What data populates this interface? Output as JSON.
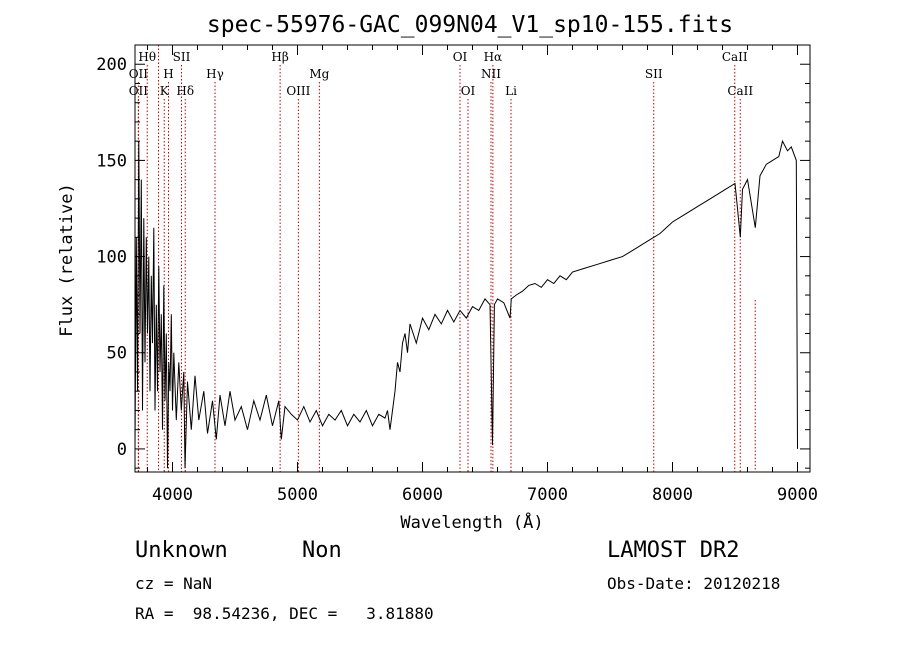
{
  "chart_data": {
    "type": "line",
    "title": "spec-55976-GAC_099N04_V1_sp10-155.fits",
    "xlabel": "Wavelength (Å)",
    "ylabel": "Flux (relative)",
    "xlim": [
      3700,
      9100
    ],
    "ylim": [
      -12,
      210
    ],
    "x_ticks": [
      4000,
      5000,
      6000,
      7000,
      8000,
      9000
    ],
    "y_ticks": [
      0,
      50,
      100,
      150,
      200
    ],
    "grid": false,
    "series": [
      {
        "color": "#000000",
        "points": [
          [
            3700,
            0
          ],
          [
            3710,
            110
          ],
          [
            3720,
            30
          ],
          [
            3730,
            160
          ],
          [
            3740,
            60
          ],
          [
            3750,
            140
          ],
          [
            3760,
            20
          ],
          [
            3770,
            120
          ],
          [
            3780,
            45
          ],
          [
            3790,
            110
          ],
          [
            3800,
            60
          ],
          [
            3810,
            100
          ],
          [
            3820,
            30
          ],
          [
            3830,
            90
          ],
          [
            3840,
            55
          ],
          [
            3850,
            115
          ],
          [
            3860,
            20
          ],
          [
            3870,
            75
          ],
          [
            3880,
            30
          ],
          [
            3890,
            95
          ],
          [
            3900,
            40
          ],
          [
            3910,
            70
          ],
          [
            3920,
            10
          ],
          [
            3930,
            85
          ],
          [
            3940,
            25
          ],
          [
            3950,
            60
          ],
          [
            3960,
            -10
          ],
          [
            3970,
            45
          ],
          [
            3980,
            30
          ],
          [
            3990,
            70
          ],
          [
            4000,
            20
          ],
          [
            4010,
            50
          ],
          [
            4030,
            15
          ],
          [
            4050,
            45
          ],
          [
            4070,
            20
          ],
          [
            4090,
            40
          ],
          [
            4100,
            -10
          ],
          [
            4120,
            35
          ],
          [
            4150,
            10
          ],
          [
            4180,
            38
          ],
          [
            4210,
            15
          ],
          [
            4250,
            30
          ],
          [
            4280,
            8
          ],
          [
            4320,
            25
          ],
          [
            4350,
            5
          ],
          [
            4380,
            28
          ],
          [
            4420,
            12
          ],
          [
            4460,
            30
          ],
          [
            4500,
            15
          ],
          [
            4550,
            22
          ],
          [
            4600,
            10
          ],
          [
            4650,
            25
          ],
          [
            4700,
            15
          ],
          [
            4750,
            28
          ],
          [
            4800,
            12
          ],
          [
            4850,
            25
          ],
          [
            4870,
            5
          ],
          [
            4900,
            22
          ],
          [
            4950,
            18
          ],
          [
            5000,
            15
          ],
          [
            5050,
            22
          ],
          [
            5100,
            14
          ],
          [
            5150,
            20
          ],
          [
            5200,
            12
          ],
          [
            5250,
            18
          ],
          [
            5300,
            15
          ],
          [
            5350,
            20
          ],
          [
            5400,
            12
          ],
          [
            5450,
            18
          ],
          [
            5500,
            14
          ],
          [
            5550,
            20
          ],
          [
            5600,
            12
          ],
          [
            5650,
            18
          ],
          [
            5700,
            16
          ],
          [
            5720,
            20
          ],
          [
            5740,
            10
          ],
          [
            5760,
            20
          ],
          [
            5780,
            30
          ],
          [
            5800,
            45
          ],
          [
            5820,
            40
          ],
          [
            5840,
            55
          ],
          [
            5860,
            60
          ],
          [
            5880,
            50
          ],
          [
            5900,
            65
          ],
          [
            5950,
            55
          ],
          [
            6000,
            68
          ],
          [
            6050,
            62
          ],
          [
            6100,
            70
          ],
          [
            6150,
            65
          ],
          [
            6200,
            72
          ],
          [
            6250,
            66
          ],
          [
            6300,
            72
          ],
          [
            6350,
            68
          ],
          [
            6400,
            74
          ],
          [
            6450,
            72
          ],
          [
            6500,
            78
          ],
          [
            6540,
            75
          ],
          [
            6560,
            2
          ],
          [
            6575,
            75
          ],
          [
            6600,
            78
          ],
          [
            6650,
            76
          ],
          [
            6700,
            68
          ],
          [
            6710,
            78
          ],
          [
            6750,
            80
          ],
          [
            6800,
            82
          ],
          [
            6850,
            85
          ],
          [
            6900,
            86
          ],
          [
            6950,
            84
          ],
          [
            7000,
            88
          ],
          [
            7050,
            86
          ],
          [
            7100,
            90
          ],
          [
            7150,
            88
          ],
          [
            7200,
            92
          ],
          [
            7300,
            94
          ],
          [
            7400,
            96
          ],
          [
            7500,
            98
          ],
          [
            7600,
            100
          ],
          [
            7700,
            104
          ],
          [
            7800,
            108
          ],
          [
            7900,
            112
          ],
          [
            8000,
            118
          ],
          [
            8100,
            122
          ],
          [
            8200,
            126
          ],
          [
            8300,
            130
          ],
          [
            8400,
            134
          ],
          [
            8500,
            138
          ],
          [
            8520,
            125
          ],
          [
            8542,
            110
          ],
          [
            8560,
            135
          ],
          [
            8600,
            140
          ],
          [
            8662,
            115
          ],
          [
            8700,
            142
          ],
          [
            8750,
            148
          ],
          [
            8800,
            150
          ],
          [
            8850,
            152
          ],
          [
            8880,
            160
          ],
          [
            8920,
            155
          ],
          [
            8950,
            157
          ],
          [
            8990,
            150
          ],
          [
            9000,
            0
          ]
        ]
      }
    ],
    "line_markers": [
      {
        "label": "Hθ",
        "x": 3798,
        "row": 1,
        "bottom": false
      },
      {
        "label": "OII",
        "x": 3727,
        "row": 2,
        "bottom": false
      },
      {
        "label": "OII",
        "x": 3727,
        "row": 3,
        "bottom": false
      },
      {
        "label": "H",
        "x": 3968,
        "row": 2,
        "bottom": false
      },
      {
        "label": "K",
        "x": 3934,
        "row": 3,
        "bottom": false
      },
      {
        "label": "SII",
        "x": 4072,
        "row": 1,
        "bottom": false
      },
      {
        "label": "Hδ",
        "x": 4102,
        "row": 3,
        "bottom": false
      },
      {
        "label": "Hγ",
        "x": 4340,
        "row": 2,
        "bottom": false
      },
      {
        "label": "Hβ",
        "x": 4861,
        "row": 1,
        "bottom": false
      },
      {
        "label": "OIII",
        "x": 5007,
        "row": 3,
        "bottom": false
      },
      {
        "label": "Mg",
        "x": 5175,
        "row": 2,
        "bottom": false
      },
      {
        "label": "OI",
        "x": 6300,
        "row": 1,
        "bottom": false
      },
      {
        "label": "OI",
        "x": 6364,
        "row": 3,
        "bottom": false
      },
      {
        "label": "Hα",
        "x": 6563,
        "row": 1,
        "bottom": false
      },
      {
        "label": "NII",
        "x": 6548,
        "row": 2,
        "bottom": false
      },
      {
        "label": "Li",
        "x": 6708,
        "row": 3,
        "bottom": false
      },
      {
        "label": "SII",
        "x": 7850,
        "row": 2,
        "bottom": false
      },
      {
        "label": "CaII",
        "x": 8498,
        "row": 1,
        "bottom": false
      },
      {
        "label": "CaII",
        "x": 8542,
        "row": 3,
        "bottom": false
      },
      {
        "label": "",
        "x": 3888,
        "row": 0,
        "bottom": false
      },
      {
        "label": "",
        "x": 8662,
        "row": 0,
        "bottom": true
      }
    ]
  },
  "info": {
    "class": "Unknown",
    "subclass": "Non",
    "survey": "LAMOST DR2",
    "cz": "cz = NaN",
    "obs_date": "Obs-Date: 20120218",
    "coords": "RA =  98.54236, DEC =   3.81880"
  }
}
